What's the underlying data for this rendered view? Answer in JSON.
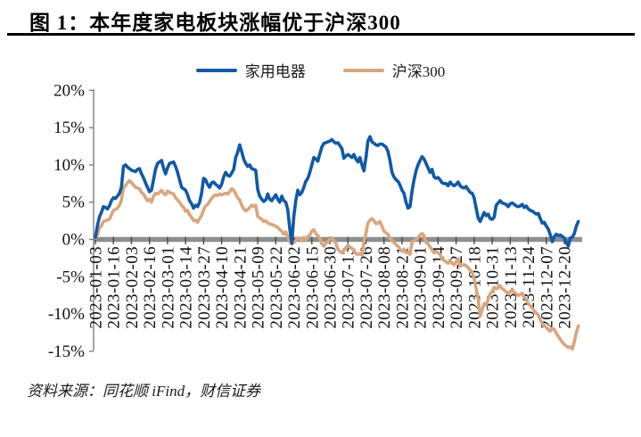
{
  "header": {
    "title": "图 1：本年度家电板块涨幅优于沪深300"
  },
  "legend": {
    "items": [
      {
        "label": "家用电器",
        "color": "#1159A6"
      },
      {
        "label": "沪深300",
        "color": "#D9A67E"
      }
    ]
  },
  "source": {
    "text": "资料来源：同花顺 iFind，财信证券"
  },
  "chart_data": {
    "type": "line",
    "title": "本年度家电板块涨幅优于沪深300",
    "legend_position": "top-center",
    "grid": false,
    "y_unit": "%",
    "ylim": [
      -15,
      20
    ],
    "y_ticks": [
      "20%",
      "15%",
      "10%",
      "5%",
      "0%",
      "-5%",
      "-10%",
      "-15%"
    ],
    "y_tick_values": [
      20,
      15,
      10,
      5,
      0,
      -5,
      -10,
      -15
    ],
    "x_tick_labels": [
      "2023-01-03",
      "2023-01-16",
      "2023-02-03",
      "2023-02-16",
      "2023-03-01",
      "2023-03-14",
      "2023-03-27",
      "2023-04-10",
      "2023-04-21",
      "2023-05-09",
      "2023-05-22",
      "2023-06-02",
      "2023-06-15",
      "2023-06-30",
      "2023-07-13",
      "2023-07-26",
      "2023-08-08",
      "2023-08-21",
      "2023-09-01",
      "2023-09-14",
      "2023-09-27",
      "2023-10-18",
      "2023-10-31",
      "2023-11-13",
      "2023-11-24",
      "2023-12-07",
      "2023-12-20"
    ],
    "points_per_tick": 9,
    "axis_color": "#7f7f7f",
    "zero_line_color": "#8E8E8E",
    "x_tick_color": "#4a4a4a",
    "series": [
      {
        "name": "家用电器",
        "color": "#1159A6",
        "values": [
          0.3,
          1.8,
          3.0,
          3.6,
          4.4,
          4.3,
          4.1,
          4.5,
          5.2,
          5.6,
          5.5,
          5.8,
          6.2,
          7.0,
          9.8,
          10.0,
          9.7,
          9.5,
          9.3,
          9.2,
          9.1,
          9.4,
          9.5,
          8.8,
          8.3,
          7.6,
          7.0,
          6.4,
          6.6,
          8.0,
          9.4,
          10.2,
          10.4,
          10.6,
          9.6,
          8.8,
          9.6,
          10.2,
          10.3,
          10.4,
          9.8,
          9.0,
          8.0,
          7.0,
          6.8,
          6.6,
          6.0,
          5.2,
          4.8,
          4.2,
          4.6,
          4.4,
          5.0,
          6.2,
          8.2,
          8.0,
          7.4,
          7.0,
          7.6,
          7.7,
          7.4,
          7.2,
          6.9,
          7.4,
          8.4,
          9.0,
          8.6,
          8.5,
          8.9,
          9.4,
          11.0,
          11.7,
          12.7,
          11.8,
          10.8,
          10.2,
          9.8,
          10.0,
          9.5,
          9.4,
          9.3,
          6.7,
          5.8,
          5.4,
          5.1,
          5.3,
          6.1,
          5.4,
          5.2,
          5.6,
          6.0,
          5.4,
          5.0,
          5.8,
          5.2,
          5.0,
          4.0,
          1.5,
          -0.5,
          3.0,
          5.2,
          6.6,
          6.0,
          6.3,
          7.0,
          7.8,
          8.2,
          9.0,
          10.0,
          11.0,
          10.8,
          10.5,
          11.5,
          12.4,
          12.9,
          13.0,
          13.1,
          13.2,
          13.4,
          13.1,
          12.9,
          13.0,
          12.6,
          12.2,
          10.9,
          11.2,
          11.4,
          11.2,
          11.0,
          11.4,
          10.8,
          10.4,
          11.0,
          10.0,
          9.2,
          11.0,
          13.2,
          13.8,
          13.1,
          12.9,
          12.7,
          12.6,
          12.8,
          12.8,
          12.6,
          12.4,
          11.8,
          10.6,
          9.0,
          8.4,
          8.0,
          7.8,
          7.3,
          6.6,
          6.2,
          5.0,
          4.2,
          4.4,
          6.5,
          8.0,
          9.2,
          10.0,
          10.6,
          11.1,
          10.8,
          10.2,
          9.6,
          9.0,
          9.4,
          8.4,
          8.2,
          8.3,
          8.0,
          7.6,
          7.5,
          7.5,
          7.2,
          7.7,
          7.4,
          7.2,
          7.4,
          7.7,
          7.2,
          7.0,
          6.9,
          7.1,
          6.7,
          6.3,
          6.2,
          5.6,
          4.2,
          2.9,
          2.4,
          3.0,
          3.6,
          3.2,
          3.4,
          2.8,
          2.7,
          3.0,
          4.6,
          4.9,
          5.2,
          4.9,
          4.8,
          4.7,
          4.4,
          4.8,
          4.9,
          4.7,
          4.5,
          4.4,
          4.5,
          4.7,
          4.3,
          4.5,
          4.1,
          3.9,
          3.8,
          3.6,
          3.4,
          3.5,
          2.8,
          2.2,
          2.3,
          1.8,
          1.4,
          0.6,
          -0.3,
          0.4,
          0.7,
          0.5,
          0.6,
          0.4,
          0.2,
          -0.4,
          -0.9,
          0.2,
          0.3,
          0.8,
          1.8,
          2.4
        ]
      },
      {
        "name": "沪深300",
        "color": "#D9A67E",
        "values": [
          0.2,
          0.6,
          1.6,
          1.8,
          2.4,
          2.5,
          2.6,
          2.7,
          3.3,
          3.9,
          4.0,
          4.2,
          4.6,
          5.3,
          6.9,
          7.2,
          7.6,
          7.9,
          7.6,
          7.3,
          7.0,
          6.9,
          6.8,
          6.3,
          6.1,
          5.6,
          5.2,
          5.4,
          5.0,
          5.8,
          6.2,
          6.1,
          6.3,
          6.6,
          6.2,
          6.0,
          6.5,
          6.3,
          6.2,
          6.1,
          5.6,
          5.3,
          5.0,
          4.6,
          4.3,
          3.8,
          3.9,
          3.3,
          3.0,
          2.5,
          2.6,
          2.3,
          2.8,
          3.2,
          4.0,
          4.5,
          4.7,
          5.1,
          5.5,
          5.8,
          6.0,
          5.9,
          6.1,
          6.0,
          6.1,
          6.2,
          6.1,
          6.4,
          6.8,
          6.6,
          6.1,
          5.6,
          5.3,
          4.6,
          4.1,
          3.8,
          4.0,
          4.3,
          4.6,
          4.4,
          4.6,
          3.1,
          2.9,
          2.7,
          2.4,
          2.5,
          2.2,
          2.1,
          2.0,
          1.9,
          1.8,
          1.6,
          1.3,
          1.1,
          0.7,
          1.0,
          0.4,
          -0.3,
          -0.6,
          -0.4,
          -0.2,
          0.2,
          0.0,
          -0.2,
          0.3,
          -0.1,
          0.4,
          0.6,
          1.1,
          1.3,
          0.8,
          0.5,
          0.2,
          -0.6,
          -0.9,
          -0.5,
          -0.3,
          0.0,
          0.2,
          -0.1,
          -0.5,
          -1.3,
          -1.6,
          -1.8,
          -1.5,
          -1.1,
          -0.8,
          -1.0,
          -1.2,
          -1.4,
          -1.9,
          -2.0,
          -1.9,
          -2.1,
          -0.3,
          0.8,
          2.2,
          2.6,
          2.8,
          2.5,
          2.1,
          2.2,
          2.4,
          1.8,
          1.1,
          0.9,
          0.7,
          0.2,
          -0.1,
          -0.4,
          -0.7,
          -0.9,
          -1.3,
          -1.6,
          -1.3,
          -1.8,
          -1.7,
          -2.0,
          -0.3,
          -0.2,
          0.0,
          0.2,
          0.6,
          0.8,
          0.5,
          -0.4,
          -0.6,
          -1.0,
          -1.4,
          -1.8,
          -1.6,
          -1.8,
          -2.0,
          -2.6,
          -2.8,
          -3.0,
          -3.2,
          -2.8,
          -3.2,
          -3.4,
          -3.0,
          -2.6,
          -3.6,
          -3.4,
          -3.4,
          -3.5,
          -3.8,
          -4.1,
          -4.4,
          -5.2,
          -6.6,
          -8.0,
          -10.3,
          -9.4,
          -8.6,
          -8.8,
          -8.0,
          -7.3,
          -7.0,
          -6.4,
          -6.6,
          -6.5,
          -6.2,
          -6.6,
          -6.8,
          -7.0,
          -7.3,
          -7.0,
          -6.8,
          -7.1,
          -7.3,
          -7.5,
          -7.4,
          -7.2,
          -7.8,
          -8.0,
          -8.6,
          -8.9,
          -9.2,
          -9.6,
          -9.9,
          -10.1,
          -10.8,
          -11.3,
          -11.5,
          -11.8,
          -12.1,
          -12.3,
          -11.9,
          -12.1,
          -12.6,
          -13.0,
          -13.4,
          -13.8,
          -14.1,
          -14.3,
          -14.5,
          -14.4,
          -14.7,
          -13.7,
          -12.5,
          -11.6
        ]
      }
    ]
  }
}
